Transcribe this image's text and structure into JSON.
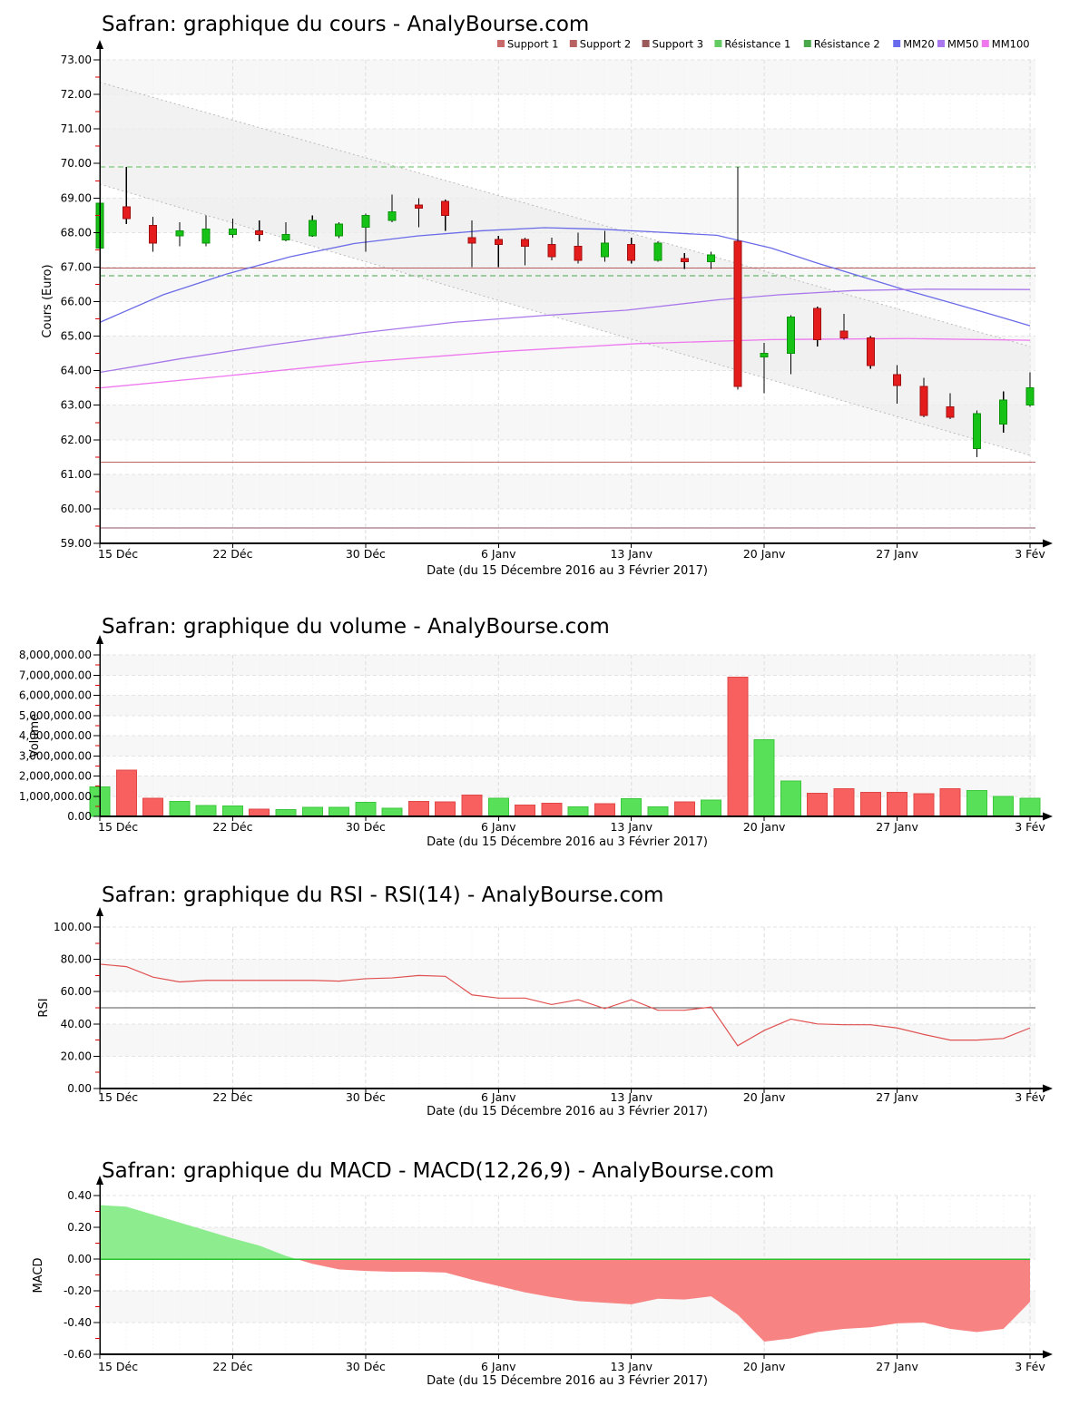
{
  "page": {
    "background": "#ffffff"
  },
  "x_axis": {
    "labels": [
      "15 Déc",
      "22 Déc",
      "30 Déc",
      "6 Janv",
      "13 Janv",
      "20 Janv",
      "27 Janv",
      "3 Fév"
    ],
    "label_indices": [
      0,
      5,
      10,
      15,
      20,
      25,
      30,
      35
    ],
    "title": "Date (du 15 Décembre 2016 au 3 Février 2017)"
  },
  "chart_data": [
    {
      "type": "candlestick",
      "title": "Safran: graphique du cours - AnalyBourse.com",
      "ylabel": "Cours (Euro)",
      "xlabel": "Date (du 15 Décembre 2016 au 3 Février 2017)",
      "ylim": [
        59,
        73
      ],
      "ytick_step": 1,
      "grid": true,
      "legend_position": "top-right",
      "colors": {
        "up": "#16c216",
        "up_stroke": "#0b930b",
        "down": "#e51c1c",
        "down_stroke": "#a11010",
        "wick": "#000000"
      },
      "legend": [
        {
          "label": "Support 1",
          "color": "#c86a6a"
        },
        {
          "label": "Support 2",
          "color": "#b86262"
        },
        {
          "label": "Support 3",
          "color": "#9a5a5a"
        },
        {
          "label": "Résistance 1",
          "color": "#62cc62"
        },
        {
          "label": "Résistance 2",
          "color": "#4aa84a"
        },
        {
          "label": "MM20",
          "color": "#6b6bee"
        },
        {
          "label": "MM50",
          "color": "#aa77ee"
        },
        {
          "label": "MM100",
          "color": "#ee77ee"
        }
      ],
      "candles": [
        [
          67.55,
          69.05,
          67.5,
          68.85,
          "u"
        ],
        [
          68.75,
          69.9,
          68.25,
          68.4,
          "d"
        ],
        [
          68.2,
          68.45,
          67.45,
          67.7,
          "d"
        ],
        [
          67.9,
          68.3,
          67.6,
          68.05,
          "u"
        ],
        [
          67.7,
          68.5,
          67.6,
          68.1,
          "u"
        ],
        [
          67.95,
          68.4,
          67.85,
          68.1,
          "u"
        ],
        [
          68.05,
          68.35,
          67.75,
          67.95,
          "d"
        ],
        [
          67.78,
          68.3,
          67.75,
          67.95,
          "u"
        ],
        [
          67.9,
          68.5,
          67.88,
          68.35,
          "u"
        ],
        [
          67.9,
          68.3,
          67.84,
          68.25,
          "u"
        ],
        [
          68.15,
          68.55,
          67.45,
          68.5,
          "u"
        ],
        [
          68.35,
          69.1,
          68.3,
          68.6,
          "u"
        ],
        [
          68.8,
          69.0,
          68.15,
          68.7,
          "d"
        ],
        [
          68.9,
          68.95,
          68.05,
          68.5,
          "d"
        ],
        [
          67.85,
          68.35,
          67.0,
          67.7,
          "d"
        ],
        [
          67.8,
          67.9,
          67.0,
          67.65,
          "d"
        ],
        [
          67.8,
          67.85,
          67.05,
          67.6,
          "d"
        ],
        [
          67.65,
          67.85,
          67.2,
          67.3,
          "d"
        ],
        [
          67.6,
          68.0,
          67.1,
          67.2,
          "d"
        ],
        [
          67.3,
          68.05,
          67.15,
          67.7,
          "u"
        ],
        [
          67.65,
          67.85,
          67.1,
          67.2,
          "d"
        ],
        [
          67.2,
          67.75,
          67.15,
          67.7,
          "u"
        ],
        [
          67.25,
          67.4,
          66.95,
          67.15,
          "d"
        ],
        [
          67.15,
          67.45,
          66.95,
          67.35,
          "u"
        ],
        [
          67.75,
          69.9,
          63.45,
          63.55,
          "d"
        ],
        [
          64.4,
          64.8,
          63.35,
          64.5,
          "u"
        ],
        [
          64.5,
          65.6,
          63.9,
          65.55,
          "u"
        ],
        [
          65.8,
          65.85,
          64.7,
          64.9,
          "d"
        ],
        [
          65.15,
          65.65,
          64.9,
          64.95,
          "d"
        ],
        [
          64.95,
          65.0,
          64.05,
          64.15,
          "d"
        ],
        [
          63.88,
          64.16,
          63.05,
          63.57,
          "d"
        ],
        [
          63.55,
          63.8,
          62.65,
          62.7,
          "d"
        ],
        [
          62.95,
          63.35,
          62.6,
          62.65,
          "d"
        ],
        [
          61.75,
          62.85,
          61.5,
          62.75,
          "u"
        ],
        [
          62.45,
          63.4,
          62.2,
          63.15,
          "u"
        ],
        [
          63.0,
          63.95,
          62.95,
          63.5,
          "u"
        ]
      ],
      "overlays": {
        "hlines": [
          {
            "name": "Résistance 1",
            "value": 69.9,
            "color": "#5cc05c",
            "dash": true
          },
          {
            "name": "Résistance 2",
            "value": 66.75,
            "color": "#4aa24a",
            "dash": true
          },
          {
            "name": "Support 1",
            "value": 66.97,
            "color": "#bb5f5f",
            "dash": false
          },
          {
            "name": "Support 2",
            "value": 61.35,
            "color": "#bb6565",
            "dash": false
          },
          {
            "name": "Support 3",
            "value": 59.45,
            "color": "#8a5560",
            "dash": false
          }
        ],
        "mlines": [
          {
            "name": "MM20",
            "color": "#6b6be8",
            "points": [
              [
                110,
                65.4
              ],
              [
                180,
                66.2
              ],
              [
                250,
                66.8
              ],
              [
                320,
                67.3
              ],
              [
                390,
                67.68
              ],
              [
                460,
                67.9
              ],
              [
                530,
                68.05
              ],
              [
                600,
                68.14
              ],
              [
                660,
                68.1
              ],
              [
                720,
                68.02
              ],
              [
                790,
                67.92
              ],
              [
                850,
                67.55
              ],
              [
                900,
                67.12
              ],
              [
                950,
                66.72
              ],
              [
                1000,
                66.32
              ],
              [
                1050,
                65.95
              ],
              [
                1090,
                65.65
              ],
              [
                1135,
                65.3
              ]
            ]
          },
          {
            "name": "MM50",
            "color": "#a878ea",
            "points": [
              [
                110,
                63.95
              ],
              [
                200,
                64.35
              ],
              [
                300,
                64.75
              ],
              [
                400,
                65.1
              ],
              [
                500,
                65.4
              ],
              [
                600,
                65.6
              ],
              [
                690,
                65.75
              ],
              [
                790,
                66.05
              ],
              [
                860,
                66.2
              ],
              [
                940,
                66.32
              ],
              [
                1020,
                66.36
              ],
              [
                1135,
                66.35
              ]
            ]
          },
          {
            "name": "MM100",
            "color": "#ee78ee",
            "points": [
              [
                110,
                63.5
              ],
              [
                250,
                63.85
              ],
              [
                400,
                64.25
              ],
              [
                550,
                64.55
              ],
              [
                700,
                64.78
              ],
              [
                850,
                64.9
              ],
              [
                1000,
                64.93
              ],
              [
                1135,
                64.88
              ]
            ]
          }
        ],
        "channel": {
          "upper": [
            [
              110,
              72.35
            ],
            [
              1135,
              64.7
            ]
          ],
          "lower": [
            [
              110,
              69.4
            ],
            [
              1135,
              61.55
            ]
          ],
          "fill": "#ededed",
          "stroke": "#bbbbbb"
        }
      }
    },
    {
      "type": "bar",
      "title": "Safran: graphique du volume - AnalyBourse.com",
      "ylabel": "Volume",
      "xlabel": "Date (du 15 Décembre 2016 au 3 Février 2017)",
      "ylim": [
        0,
        8000000
      ],
      "ytick_step": 1000000,
      "grid": true,
      "colors": {
        "up": "#58e058",
        "up_stroke": "#3cc83c",
        "down": "#f86060",
        "down_stroke": "#e04848"
      },
      "values": [
        [
          1450000,
          "u"
        ],
        [
          2300000,
          "d"
        ],
        [
          900000,
          "d"
        ],
        [
          750000,
          "u"
        ],
        [
          550000,
          "u"
        ],
        [
          520000,
          "u"
        ],
        [
          350000,
          "d"
        ],
        [
          330000,
          "u"
        ],
        [
          450000,
          "u"
        ],
        [
          450000,
          "u"
        ],
        [
          700000,
          "u"
        ],
        [
          400000,
          "u"
        ],
        [
          750000,
          "d"
        ],
        [
          720000,
          "d"
        ],
        [
          1050000,
          "d"
        ],
        [
          900000,
          "u"
        ],
        [
          570000,
          "d"
        ],
        [
          650000,
          "d"
        ],
        [
          480000,
          "u"
        ],
        [
          630000,
          "d"
        ],
        [
          870000,
          "u"
        ],
        [
          480000,
          "u"
        ],
        [
          720000,
          "d"
        ],
        [
          820000,
          "u"
        ],
        [
          6900000,
          "d"
        ],
        [
          3800000,
          "u"
        ],
        [
          1750000,
          "u"
        ],
        [
          1150000,
          "d"
        ],
        [
          1380000,
          "d"
        ],
        [
          1200000,
          "d"
        ],
        [
          1200000,
          "d"
        ],
        [
          1120000,
          "d"
        ],
        [
          1380000,
          "d"
        ],
        [
          1270000,
          "u"
        ],
        [
          1000000,
          "u"
        ],
        [
          900000,
          "u"
        ]
      ]
    },
    {
      "type": "line",
      "title": "Safran: graphique du RSI - RSI(14) - AnalyBourse.com",
      "ylabel": "RSI",
      "xlabel": "Date (du 15 Décembre 2016 au 3 Février 2017)",
      "ylim": [
        0,
        100
      ],
      "ytick_step": 20,
      "grid": true,
      "midline": 50,
      "colors": {
        "line": "#e05050",
        "midline": "#555555"
      },
      "values": [
        77,
        75.5,
        69,
        66,
        67,
        67,
        67,
        67,
        67,
        66.5,
        68,
        68.5,
        70,
        69.5,
        58,
        56,
        56,
        52,
        55,
        49.5,
        55,
        48.5,
        48.5,
        50.5,
        26.5,
        36,
        43,
        40,
        39.5,
        39.5,
        37.5,
        33.5,
        30,
        30,
        31,
        37.5
      ]
    },
    {
      "type": "area",
      "title": "Safran: graphique du MACD - MACD(12,26,9) - AnalyBourse.com",
      "ylabel": "MACD",
      "xlabel": "Date (du 15 Décembre 2016 au 3 Février 2017)",
      "ylim": [
        -0.6,
        0.4
      ],
      "ytick_step": 0.2,
      "grid": true,
      "colors": {
        "pos": "#8dec8d",
        "neg": "#f88383",
        "zero_line": "#28c028"
      },
      "values": [
        0.34,
        0.33,
        0.28,
        0.23,
        0.18,
        0.13,
        0.085,
        0.02,
        -0.03,
        -0.065,
        -0.075,
        -0.08,
        -0.08,
        -0.085,
        -0.13,
        -0.17,
        -0.21,
        -0.24,
        -0.265,
        -0.275,
        -0.285,
        -0.25,
        -0.255,
        -0.235,
        -0.35,
        -0.52,
        -0.5,
        -0.46,
        -0.44,
        -0.43,
        -0.405,
        -0.4,
        -0.44,
        -0.46,
        -0.44,
        -0.27
      ]
    }
  ]
}
